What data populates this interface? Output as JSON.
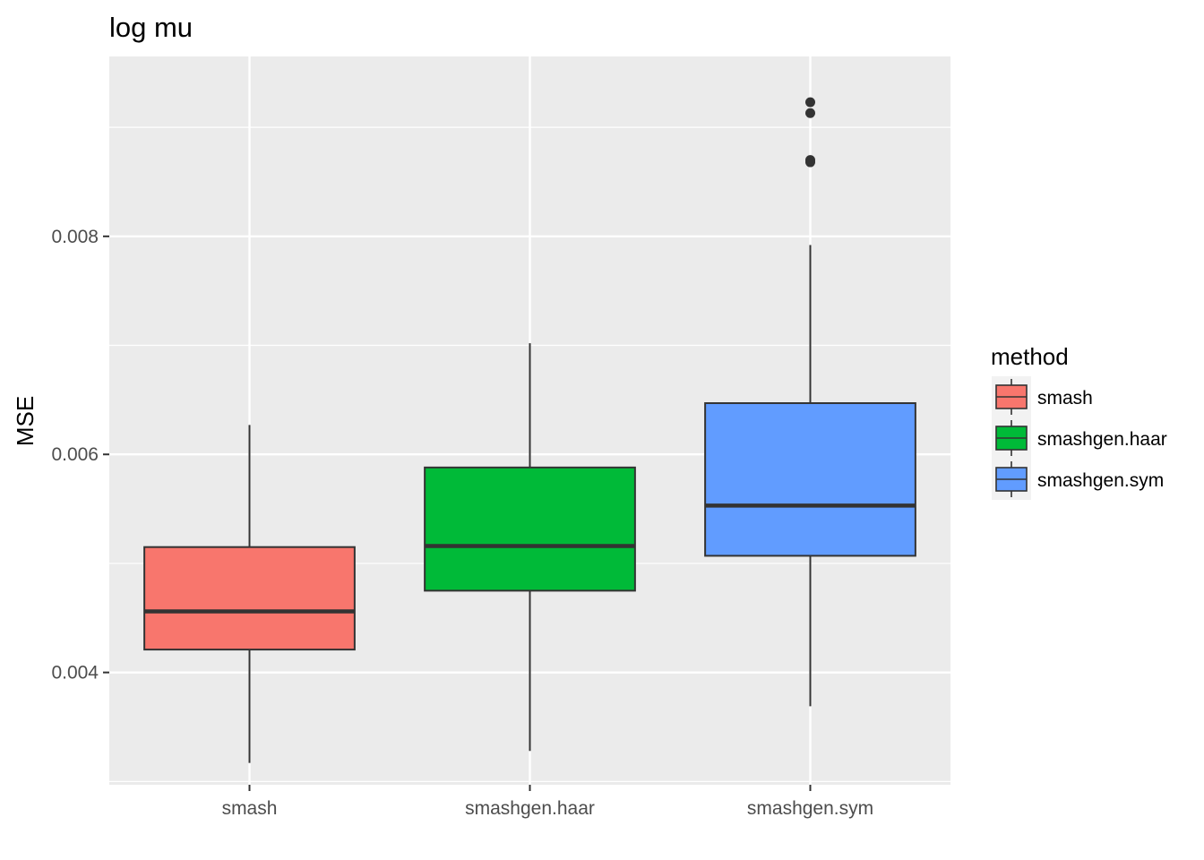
{
  "chart_data": {
    "type": "boxplot",
    "title": "log mu",
    "xlabel": "",
    "ylabel": "MSE",
    "ylim": [
      0.00297,
      0.00965
    ],
    "yticks": [
      0.004,
      0.006,
      0.008
    ],
    "ytick_labels": [
      "0.004",
      "0.006",
      "0.008"
    ],
    "grid": true,
    "legend": {
      "title": "method",
      "position": "right"
    },
    "categories": [
      "smash",
      "smashgen.haar",
      "smashgen.sym"
    ],
    "series": [
      {
        "name": "smash",
        "color": "#F8766D",
        "whisker_low": 0.00317,
        "q1": 0.00421,
        "median": 0.00456,
        "q3": 0.00515,
        "whisker_high": 0.00627,
        "outliers": []
      },
      {
        "name": "smashgen.haar",
        "color": "#00BA38",
        "whisker_low": 0.00328,
        "q1": 0.00475,
        "median": 0.00516,
        "q3": 0.00588,
        "whisker_high": 0.00702,
        "outliers": []
      },
      {
        "name": "smashgen.sym",
        "color": "#619CFF",
        "whisker_low": 0.00369,
        "q1": 0.00507,
        "median": 0.00553,
        "q3": 0.00647,
        "whisker_high": 0.00792,
        "outliers": [
          0.00868,
          0.0087,
          0.00913,
          0.00923
        ]
      }
    ]
  }
}
